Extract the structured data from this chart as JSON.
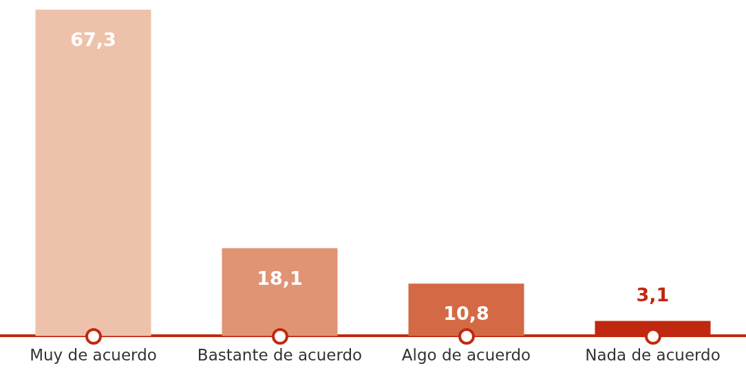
{
  "chart_data": {
    "type": "bar",
    "categories": [
      "Muy de acuerdo",
      "Bastante de acuerdo",
      "Algo de acuerdo",
      "Nada de acuerdo"
    ],
    "values": [
      67.3,
      18.1,
      10.8,
      3.1
    ],
    "colors": [
      "#eec2aa",
      "#e09474",
      "#d46a45",
      "#c0290f"
    ],
    "value_labels": [
      "67,3",
      "18,1",
      "10,8",
      "3,1"
    ],
    "grid": false,
    "legend": false
  }
}
